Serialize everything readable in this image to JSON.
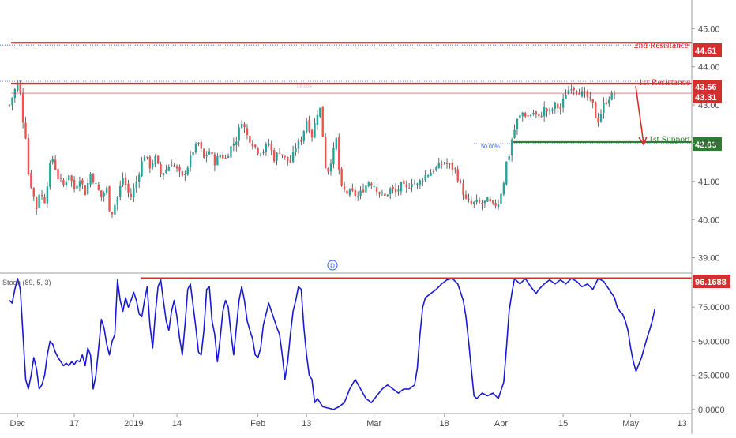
{
  "chart_data": [
    {
      "type": "candlestick",
      "name": "price",
      "ylim": [
        38.6,
        45.75
      ],
      "y_ticks": [
        "39.00",
        "40.00",
        "41.00",
        "42.00",
        "43.00",
        "44.00",
        "45.00"
      ],
      "x_ticks": [
        {
          "label": "Dec",
          "bar": 3
        },
        {
          "label": "17",
          "bar": 24
        },
        {
          "label": "2019",
          "bar": 46
        },
        {
          "label": "14",
          "bar": 62
        },
        {
          "label": "Feb",
          "bar": 92
        },
        {
          "label": "13",
          "bar": 110
        },
        {
          "label": "Mar",
          "bar": 135
        },
        {
          "label": "18",
          "bar": 161
        },
        {
          "label": "Apr",
          "bar": 182
        },
        {
          "label": "15",
          "bar": 205
        },
        {
          "label": "May",
          "bar": 230
        },
        {
          "label": "13",
          "bar": 249
        }
      ],
      "close_path": [
        [
          0,
          43.0
        ],
        [
          2,
          43.4
        ],
        [
          3,
          43.55
        ],
        [
          4,
          43.3
        ],
        [
          5,
          42.6
        ],
        [
          6,
          42.2
        ],
        [
          7,
          41.2
        ],
        [
          8,
          40.9
        ],
        [
          9,
          40.6
        ],
        [
          10,
          40.3
        ],
        [
          11,
          40.7
        ],
        [
          13,
          40.5
        ],
        [
          15,
          41.4
        ],
        [
          16,
          41.6
        ],
        [
          18,
          41.1
        ],
        [
          20,
          40.9
        ],
        [
          22,
          41.2
        ],
        [
          24,
          40.8
        ],
        [
          26,
          41.1
        ],
        [
          28,
          40.7
        ],
        [
          30,
          41.2
        ],
        [
          32,
          40.9
        ],
        [
          34,
          40.6
        ],
        [
          36,
          40.8
        ],
        [
          37,
          40.3
        ],
        [
          38,
          40.2
        ],
        [
          40,
          40.6
        ],
        [
          42,
          41.1
        ],
        [
          44,
          40.7
        ],
        [
          45,
          40.6
        ],
        [
          47,
          41.0
        ],
        [
          49,
          41.5
        ],
        [
          50,
          41.7
        ],
        [
          52,
          41.4
        ],
        [
          54,
          41.6
        ],
        [
          56,
          41.2
        ],
        [
          58,
          41.3
        ],
        [
          60,
          41.5
        ],
        [
          62,
          41.3
        ],
        [
          64,
          41.1
        ],
        [
          66,
          41.4
        ],
        [
          68,
          41.8
        ],
        [
          70,
          42.0
        ],
        [
          72,
          41.6
        ],
        [
          74,
          41.8
        ],
        [
          76,
          41.5
        ],
        [
          78,
          41.7
        ],
        [
          80,
          41.6
        ],
        [
          82,
          41.9
        ],
        [
          84,
          42.1
        ],
        [
          86,
          42.6
        ],
        [
          88,
          42.2
        ],
        [
          90,
          42.0
        ],
        [
          92,
          41.8
        ],
        [
          94,
          41.8
        ],
        [
          96,
          42.0
        ],
        [
          98,
          41.6
        ],
        [
          100,
          41.8
        ],
        [
          102,
          41.6
        ],
        [
          104,
          41.5
        ],
        [
          106,
          41.9
        ],
        [
          108,
          42.1
        ],
        [
          110,
          42.6
        ],
        [
          112,
          42.2
        ],
        [
          114,
          42.8
        ],
        [
          115,
          42.9
        ],
        [
          116,
          42.2
        ],
        [
          117,
          41.4
        ],
        [
          118,
          41.3
        ],
        [
          120,
          41.8
        ],
        [
          121,
          42.1
        ],
        [
          122,
          41.3
        ],
        [
          123,
          40.8
        ],
        [
          125,
          40.7
        ],
        [
          127,
          40.7
        ],
        [
          129,
          40.6
        ],
        [
          131,
          40.8
        ],
        [
          133,
          41.0
        ],
        [
          135,
          40.9
        ],
        [
          137,
          40.7
        ],
        [
          139,
          40.6
        ],
        [
          141,
          40.8
        ],
        [
          143,
          40.7
        ],
        [
          145,
          40.9
        ],
        [
          147,
          40.8
        ],
        [
          149,
          41.0
        ],
        [
          151,
          40.9
        ],
        [
          153,
          41.1
        ],
        [
          155,
          41.2
        ],
        [
          157,
          41.3
        ],
        [
          159,
          41.4
        ],
        [
          161,
          41.5
        ],
        [
          163,
          41.4
        ],
        [
          165,
          41.3
        ],
        [
          167,
          40.9
        ],
        [
          169,
          40.5
        ],
        [
          171,
          40.4
        ],
        [
          173,
          40.45
        ],
        [
          175,
          40.4
        ],
        [
          177,
          40.5
        ],
        [
          179,
          40.35
        ],
        [
          181,
          40.45
        ],
        [
          183,
          41.0
        ],
        [
          184,
          41.5
        ],
        [
          185,
          41.7
        ],
        [
          186,
          42.1
        ],
        [
          188,
          42.6
        ],
        [
          190,
          42.8
        ],
        [
          192,
          42.7
        ],
        [
          194,
          42.8
        ],
        [
          196,
          42.65
        ],
        [
          198,
          42.9
        ],
        [
          200,
          42.8
        ],
        [
          202,
          43.0
        ],
        [
          204,
          42.9
        ],
        [
          206,
          43.3
        ],
        [
          208,
          43.5
        ],
        [
          210,
          43.4
        ],
        [
          212,
          43.3
        ],
        [
          214,
          43.2
        ],
        [
          216,
          43.0
        ],
        [
          217,
          42.7
        ],
        [
          218,
          42.6
        ],
        [
          220,
          43.0
        ],
        [
          222,
          43.2
        ],
        [
          224,
          43.3
        ]
      ]
    },
    {
      "type": "line",
      "name": "Stoch (89, 5, 3)",
      "ylim": [
        -3,
        100
      ],
      "y_ticks": [
        "0.0000",
        "25.0000",
        "50.0000",
        "75.0000"
      ],
      "points": [
        [
          0,
          80
        ],
        [
          1,
          78
        ],
        [
          2,
          88
        ],
        [
          3,
          96
        ],
        [
          4,
          88
        ],
        [
          5,
          55
        ],
        [
          6,
          22
        ],
        [
          7,
          15
        ],
        [
          8,
          25
        ],
        [
          9,
          38
        ],
        [
          10,
          30
        ],
        [
          11,
          15
        ],
        [
          12,
          18
        ],
        [
          13,
          25
        ],
        [
          14,
          40
        ],
        [
          15,
          50
        ],
        [
          16,
          48
        ],
        [
          17,
          42
        ],
        [
          18,
          38
        ],
        [
          19,
          35
        ],
        [
          20,
          32
        ],
        [
          21,
          34
        ],
        [
          22,
          32
        ],
        [
          23,
          35
        ],
        [
          24,
          33
        ],
        [
          25,
          36
        ],
        [
          26,
          35
        ],
        [
          27,
          40
        ],
        [
          28,
          32
        ],
        [
          29,
          45
        ],
        [
          30,
          40
        ],
        [
          31,
          15
        ],
        [
          32,
          25
        ],
        [
          33,
          45
        ],
        [
          34,
          66
        ],
        [
          35,
          60
        ],
        [
          36,
          48
        ],
        [
          37,
          40
        ],
        [
          38,
          50
        ],
        [
          39,
          55
        ],
        [
          40,
          95
        ],
        [
          41,
          80
        ],
        [
          42,
          72
        ],
        [
          43,
          82
        ],
        [
          44,
          75
        ],
        [
          45,
          80
        ],
        [
          46,
          86
        ],
        [
          47,
          80
        ],
        [
          48,
          70
        ],
        [
          49,
          68
        ],
        [
          50,
          80
        ],
        [
          51,
          90
        ],
        [
          52,
          62
        ],
        [
          53,
          45
        ],
        [
          54,
          70
        ],
        [
          55,
          90
        ],
        [
          56,
          95
        ],
        [
          57,
          80
        ],
        [
          58,
          65
        ],
        [
          59,
          58
        ],
        [
          60,
          72
        ],
        [
          61,
          80
        ],
        [
          62,
          68
        ],
        [
          63,
          52
        ],
        [
          64,
          40
        ],
        [
          65,
          62
        ],
        [
          66,
          88
        ],
        [
          67,
          92
        ],
        [
          68,
          76
        ],
        [
          69,
          60
        ],
        [
          70,
          42
        ],
        [
          71,
          40
        ],
        [
          72,
          58
        ],
        [
          73,
          88
        ],
        [
          74,
          90
        ],
        [
          75,
          65
        ],
        [
          76,
          55
        ],
        [
          77,
          35
        ],
        [
          78,
          52
        ],
        [
          79,
          72
        ],
        [
          80,
          80
        ],
        [
          81,
          75
        ],
        [
          82,
          56
        ],
        [
          83,
          40
        ],
        [
          84,
          60
        ],
        [
          85,
          80
        ],
        [
          86,
          90
        ],
        [
          87,
          80
        ],
        [
          88,
          65
        ],
        [
          89,
          58
        ],
        [
          90,
          52
        ],
        [
          91,
          40
        ],
        [
          92,
          38
        ],
        [
          93,
          45
        ],
        [
          94,
          62
        ],
        [
          95,
          70
        ],
        [
          96,
          78
        ],
        [
          97,
          72
        ],
        [
          98,
          66
        ],
        [
          99,
          60
        ],
        [
          100,
          55
        ],
        [
          101,
          40
        ],
        [
          102,
          22
        ],
        [
          103,
          35
        ],
        [
          104,
          55
        ],
        [
          105,
          72
        ],
        [
          106,
          80
        ],
        [
          107,
          90
        ],
        [
          108,
          88
        ],
        [
          109,
          60
        ],
        [
          110,
          40
        ],
        [
          111,
          25
        ],
        [
          112,
          22
        ],
        [
          113,
          5
        ],
        [
          114,
          8
        ],
        [
          115,
          5
        ],
        [
          116,
          2
        ],
        [
          118,
          1
        ],
        [
          120,
          0
        ],
        [
          122,
          2
        ],
        [
          124,
          5
        ],
        [
          126,
          15
        ],
        [
          128,
          22
        ],
        [
          130,
          15
        ],
        [
          132,
          8
        ],
        [
          134,
          5
        ],
        [
          136,
          10
        ],
        [
          138,
          15
        ],
        [
          140,
          18
        ],
        [
          142,
          15
        ],
        [
          144,
          12
        ],
        [
          146,
          15
        ],
        [
          148,
          15
        ],
        [
          150,
          18
        ],
        [
          151,
          30
        ],
        [
          152,
          55
        ],
        [
          153,
          75
        ],
        [
          154,
          82
        ],
        [
          156,
          85
        ],
        [
          158,
          88
        ],
        [
          160,
          92
        ],
        [
          162,
          95
        ],
        [
          164,
          96
        ],
        [
          166,
          92
        ],
        [
          168,
          80
        ],
        [
          169,
          68
        ],
        [
          170,
          50
        ],
        [
          171,
          30
        ],
        [
          172,
          10
        ],
        [
          173,
          8
        ],
        [
          175,
          12
        ],
        [
          177,
          10
        ],
        [
          179,
          12
        ],
        [
          181,
          8
        ],
        [
          183,
          20
        ],
        [
          184,
          45
        ],
        [
          185,
          72
        ],
        [
          186,
          85
        ],
        [
          187,
          96
        ],
        [
          189,
          92
        ],
        [
          191,
          96
        ],
        [
          193,
          90
        ],
        [
          195,
          85
        ],
        [
          196,
          88
        ],
        [
          198,
          92
        ],
        [
          200,
          95
        ],
        [
          202,
          92
        ],
        [
          204,
          95
        ],
        [
          206,
          92
        ],
        [
          208,
          96
        ],
        [
          210,
          94
        ],
        [
          212,
          90
        ],
        [
          214,
          92
        ],
        [
          216,
          88
        ],
        [
          218,
          96
        ],
        [
          220,
          94
        ],
        [
          222,
          88
        ],
        [
          224,
          82
        ],
        [
          225,
          75
        ],
        [
          226,
          72
        ],
        [
          227,
          70
        ],
        [
          228,
          65
        ],
        [
          229,
          58
        ],
        [
          230,
          45
        ],
        [
          231,
          35
        ],
        [
          232,
          28
        ],
        [
          233,
          33
        ],
        [
          234,
          38
        ],
        [
          235,
          45
        ],
        [
          236,
          52
        ],
        [
          237,
          58
        ],
        [
          238,
          65
        ],
        [
          239,
          74
        ]
      ]
    }
  ],
  "levels": [
    {
      "name": "2nd Resistance",
      "label": "2nd Resistance",
      "value": "44.61",
      "color": "#d32f2f"
    },
    {
      "name": "1st Resistance",
      "label": "1st Resistance",
      "value": "43.56",
      "color": "#d32f2f"
    },
    {
      "name": "1st Support",
      "label": "1st Support",
      "value": "42.03",
      "color": "#2e7d32"
    }
  ],
  "price_tags": {
    "last_price": "43.31",
    "stoch_level": "96.1688",
    "fib_pct": "50.00%",
    "fib_pct_small": "100.00%"
  },
  "indicator_label": "Stoch (89, 5, 3)",
  "dividend_marker": "D",
  "colors": {
    "up": "#26a69a",
    "down": "#ef5350",
    "wick": "#424242",
    "stoch_line": "#1a1ad6",
    "resistance": "#d32f2f",
    "support": "#2e7d32",
    "dotted_blue": "#2962ff",
    "axis_text": "#4a4a4a",
    "separator": "#9e9e9e"
  }
}
